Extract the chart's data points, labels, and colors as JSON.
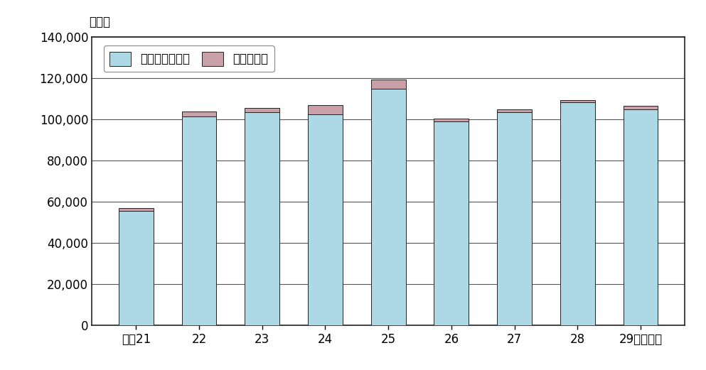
{
  "categories": [
    "平成21",
    "22",
    "23",
    "24",
    "25",
    "26",
    "27",
    "28",
    "29"
  ],
  "single_house": [
    55500,
    101500,
    103500,
    102500,
    115000,
    99000,
    103500,
    108500,
    105000
  ],
  "collective": [
    1500,
    2500,
    2000,
    4500,
    4500,
    1500,
    1500,
    1000,
    1500
  ],
  "bar_color_single": "#add8e6",
  "bar_color_collective": "#c9a0a8",
  "bar_edgecolor": "#222222",
  "title_y_label": "（戸）",
  "xlabel_last": "（年度）",
  "legend_single": "一戸建ての住宅",
  "legend_collective": "共同住宅等",
  "ylim": [
    0,
    140000
  ],
  "yticks": [
    0,
    20000,
    40000,
    60000,
    80000,
    100000,
    120000,
    140000
  ],
  "grid_color": "#555555",
  "background_color": "#ffffff",
  "bar_width": 0.55
}
